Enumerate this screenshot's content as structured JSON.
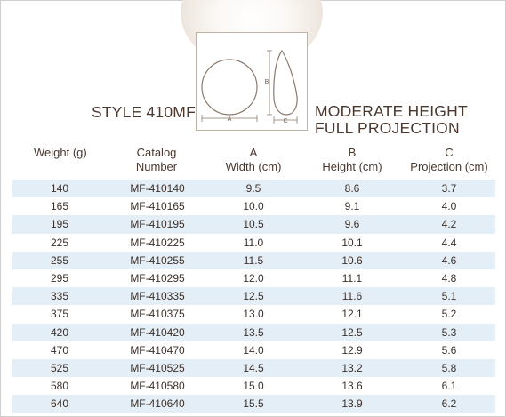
{
  "style_title": "STYLE 410MF",
  "description": [
    "MODERATE HEIGHT",
    "FULL PROJECTION"
  ],
  "diagram": {
    "label_a": "A",
    "label_b": "B",
    "label_c": "C"
  },
  "columns": [
    {
      "line1": "Weight (g)",
      "line2": ""
    },
    {
      "line1": "Catalog",
      "line2": "Number"
    },
    {
      "line1": "A",
      "line2": "Width (cm)"
    },
    {
      "line1": "B",
      "line2": "Height (cm)"
    },
    {
      "line1": "C",
      "line2": "Projection (cm)"
    }
  ],
  "rows": [
    [
      "140",
      "MF-410140",
      "9.5",
      "8.6",
      "3.7"
    ],
    [
      "165",
      "MF-410165",
      "10.0",
      "9.1",
      "4.0"
    ],
    [
      "195",
      "MF-410195",
      "10.5",
      "9.6",
      "4.2"
    ],
    [
      "225",
      "MF-410225",
      "11.0",
      "10.1",
      "4.4"
    ],
    [
      "255",
      "MF-410255",
      "11.5",
      "10.6",
      "4.6"
    ],
    [
      "295",
      "MF-410295",
      "12.0",
      "11.1",
      "4.8"
    ],
    [
      "335",
      "MF-410335",
      "12.5",
      "11.6",
      "5.1"
    ],
    [
      "375",
      "MF-410375",
      "13.0",
      "12.1",
      "5.2"
    ],
    [
      "420",
      "MF-410420",
      "13.5",
      "12.5",
      "5.3"
    ],
    [
      "470",
      "MF-410470",
      "14.0",
      "12.9",
      "5.6"
    ],
    [
      "525",
      "MF-410525",
      "14.5",
      "13.2",
      "5.8"
    ],
    [
      "580",
      "MF-410580",
      "15.0",
      "13.6",
      "6.1"
    ],
    [
      "640",
      "MF-410640",
      "15.5",
      "13.9",
      "6.2"
    ]
  ],
  "colors": {
    "stripe": "#e4eef6",
    "text": "#4a372d",
    "line": "#8a7a6e"
  }
}
